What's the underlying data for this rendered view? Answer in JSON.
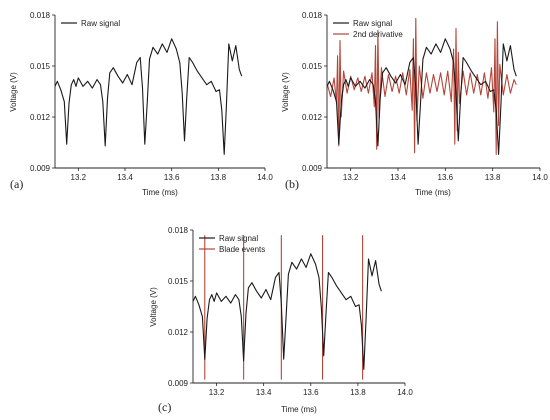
{
  "figure": {
    "background": "#ffffff"
  },
  "chart_data": [
    {
      "panel": "(a)",
      "type": "line",
      "xlabel": "Time (ms)",
      "ylabel": "Voltage (V)",
      "xlim": [
        13.1,
        14.0
      ],
      "ylim": [
        0.009,
        0.018
      ],
      "xticks": [
        13.2,
        13.4,
        13.6,
        13.8,
        14.0
      ],
      "xtick_labels": [
        "13.2",
        "13.4",
        "13.6",
        "13.8",
        "14.0"
      ],
      "yticks": [
        0.009,
        0.012,
        0.015,
        0.018
      ],
      "ytick_labels": [
        "0.009",
        "0.012",
        "0.015",
        "0.018"
      ],
      "legend": {
        "position": "top-left"
      },
      "series": [
        {
          "name": "Raw signal",
          "color": "#1a1a1a",
          "x": [
            13.1,
            13.11,
            13.125,
            13.14,
            13.15,
            13.16,
            13.17,
            13.18,
            13.19,
            13.2,
            13.22,
            13.24,
            13.26,
            13.28,
            13.295,
            13.305,
            13.315,
            13.325,
            13.335,
            13.35,
            13.37,
            13.39,
            13.41,
            13.43,
            13.45,
            13.465,
            13.475,
            13.485,
            13.495,
            13.505,
            13.52,
            13.54,
            13.56,
            13.58,
            13.6,
            13.62,
            13.635,
            13.645,
            13.655,
            13.665,
            13.675,
            13.69,
            13.71,
            13.73,
            13.75,
            13.77,
            13.79,
            13.805,
            13.815,
            13.825,
            13.835,
            13.845,
            13.86,
            13.875,
            13.89,
            13.9
          ],
          "y": [
            0.0138,
            0.0141,
            0.0136,
            0.0129,
            0.0104,
            0.0128,
            0.0139,
            0.0142,
            0.0138,
            0.0143,
            0.0138,
            0.0141,
            0.0137,
            0.0142,
            0.0139,
            0.0129,
            0.0103,
            0.0131,
            0.0146,
            0.0149,
            0.0144,
            0.014,
            0.0145,
            0.0139,
            0.0152,
            0.0155,
            0.0137,
            0.0104,
            0.0128,
            0.0154,
            0.0161,
            0.0157,
            0.0163,
            0.0158,
            0.0166,
            0.016,
            0.0152,
            0.0134,
            0.0106,
            0.0132,
            0.0155,
            0.0152,
            0.0147,
            0.0143,
            0.0139,
            0.0141,
            0.0135,
            0.0136,
            0.0124,
            0.0098,
            0.0128,
            0.0163,
            0.0153,
            0.0162,
            0.0148,
            0.0144
          ]
        }
      ]
    },
    {
      "panel": "(b)",
      "type": "line",
      "xlabel": "Time (ms)",
      "ylabel": "Voltage (V)",
      "xlim": [
        13.1,
        14.0
      ],
      "ylim": [
        0.009,
        0.018
      ],
      "xticks": [
        13.2,
        13.4,
        13.6,
        13.8,
        14.0
      ],
      "xtick_labels": [
        "13.2",
        "13.4",
        "13.6",
        "13.8",
        "14.0"
      ],
      "yticks": [
        0.009,
        0.012,
        0.015,
        0.018
      ],
      "ytick_labels": [
        "0.009",
        "0.012",
        "0.015",
        "0.018"
      ],
      "legend": {
        "position": "top-left"
      },
      "series": [
        {
          "name": "Raw signal",
          "color": "#1a1a1a",
          "x": [
            13.1,
            13.11,
            13.125,
            13.14,
            13.15,
            13.16,
            13.17,
            13.18,
            13.19,
            13.2,
            13.22,
            13.24,
            13.26,
            13.28,
            13.295,
            13.305,
            13.315,
            13.325,
            13.335,
            13.35,
            13.37,
            13.39,
            13.41,
            13.43,
            13.45,
            13.465,
            13.475,
            13.485,
            13.495,
            13.505,
            13.52,
            13.54,
            13.56,
            13.58,
            13.6,
            13.62,
            13.635,
            13.645,
            13.655,
            13.665,
            13.675,
            13.69,
            13.71,
            13.73,
            13.75,
            13.77,
            13.79,
            13.805,
            13.815,
            13.825,
            13.835,
            13.845,
            13.86,
            13.875,
            13.89,
            13.9
          ],
          "y": [
            0.0138,
            0.0141,
            0.0136,
            0.0129,
            0.0104,
            0.0128,
            0.0139,
            0.0142,
            0.0138,
            0.0143,
            0.0138,
            0.0141,
            0.0137,
            0.0142,
            0.0139,
            0.0129,
            0.0103,
            0.0131,
            0.0146,
            0.0149,
            0.0144,
            0.014,
            0.0145,
            0.0139,
            0.0152,
            0.0155,
            0.0137,
            0.0104,
            0.0128,
            0.0154,
            0.0161,
            0.0157,
            0.0163,
            0.0158,
            0.0166,
            0.016,
            0.0152,
            0.0134,
            0.0106,
            0.0132,
            0.0155,
            0.0152,
            0.0147,
            0.0143,
            0.0139,
            0.0141,
            0.0135,
            0.0136,
            0.0124,
            0.0098,
            0.0128,
            0.0163,
            0.0153,
            0.0162,
            0.0148,
            0.0144
          ]
        },
        {
          "name": "2nd derivative",
          "color": "#b5463a",
          "x": [
            13.1,
            13.115,
            13.13,
            13.14,
            13.145,
            13.15,
            13.155,
            13.16,
            13.17,
            13.185,
            13.2,
            13.215,
            13.23,
            13.245,
            13.26,
            13.275,
            13.29,
            13.3,
            13.305,
            13.31,
            13.315,
            13.32,
            13.33,
            13.345,
            13.36,
            13.375,
            13.39,
            13.405,
            13.42,
            13.435,
            13.45,
            13.46,
            13.465,
            13.47,
            13.475,
            13.48,
            13.49,
            13.505,
            13.52,
            13.535,
            13.55,
            13.565,
            13.58,
            13.595,
            13.61,
            13.625,
            13.635,
            13.64,
            13.645,
            13.65,
            13.655,
            13.66,
            13.675,
            13.69,
            13.705,
            13.72,
            13.735,
            13.75,
            13.765,
            13.78,
            13.795,
            13.805,
            13.81,
            13.815,
            13.82,
            13.825,
            13.83,
            13.845,
            13.86,
            13.875,
            13.89,
            13.9
          ],
          "y": [
            0.014,
            0.0132,
            0.0143,
            0.0128,
            0.0156,
            0.0103,
            0.0165,
            0.012,
            0.0147,
            0.0134,
            0.0144,
            0.0136,
            0.0143,
            0.0135,
            0.0144,
            0.0134,
            0.0146,
            0.0126,
            0.0162,
            0.0101,
            0.0171,
            0.0119,
            0.0149,
            0.0132,
            0.0145,
            0.0135,
            0.0144,
            0.0134,
            0.0146,
            0.0133,
            0.0148,
            0.0124,
            0.0166,
            0.0099,
            0.0178,
            0.0118,
            0.015,
            0.0131,
            0.0146,
            0.0134,
            0.0145,
            0.0135,
            0.0146,
            0.0133,
            0.0147,
            0.0129,
            0.016,
            0.0104,
            0.0172,
            0.0112,
            0.0158,
            0.0128,
            0.0147,
            0.0133,
            0.0146,
            0.0134,
            0.0145,
            0.0133,
            0.0146,
            0.0131,
            0.0149,
            0.0123,
            0.0166,
            0.0098,
            0.0176,
            0.0115,
            0.0151,
            0.0133,
            0.0145,
            0.0134,
            0.0142,
            0.0139
          ]
        }
      ]
    },
    {
      "panel": "(c)",
      "type": "line",
      "xlabel": "Time (ms)",
      "ylabel": "Voltage (V)",
      "xlim": [
        13.1,
        14.0
      ],
      "ylim": [
        0.009,
        0.018
      ],
      "xticks": [
        13.2,
        13.4,
        13.6,
        13.8,
        14.0
      ],
      "xtick_labels": [
        "13.2",
        "13.4",
        "13.6",
        "13.8",
        "14.0"
      ],
      "yticks": [
        0.009,
        0.012,
        0.015,
        0.018
      ],
      "ytick_labels": [
        "0.009",
        "0.012",
        "0.015",
        "0.018"
      ],
      "legend": {
        "position": "top-left"
      },
      "series": [
        {
          "name": "Raw signal",
          "color": "#1a1a1a",
          "x": [
            13.1,
            13.11,
            13.125,
            13.14,
            13.15,
            13.16,
            13.17,
            13.18,
            13.19,
            13.2,
            13.22,
            13.24,
            13.26,
            13.28,
            13.295,
            13.305,
            13.315,
            13.325,
            13.335,
            13.35,
            13.37,
            13.39,
            13.41,
            13.43,
            13.45,
            13.465,
            13.475,
            13.485,
            13.495,
            13.505,
            13.52,
            13.54,
            13.56,
            13.58,
            13.6,
            13.62,
            13.635,
            13.645,
            13.655,
            13.665,
            13.675,
            13.69,
            13.71,
            13.73,
            13.75,
            13.77,
            13.79,
            13.805,
            13.815,
            13.825,
            13.835,
            13.845,
            13.86,
            13.875,
            13.89,
            13.9
          ],
          "y": [
            0.0138,
            0.0141,
            0.0136,
            0.0129,
            0.0104,
            0.0128,
            0.0139,
            0.0142,
            0.0138,
            0.0143,
            0.0138,
            0.0141,
            0.0137,
            0.0142,
            0.0139,
            0.0129,
            0.0103,
            0.0131,
            0.0146,
            0.0149,
            0.0144,
            0.014,
            0.0145,
            0.0139,
            0.0152,
            0.0155,
            0.0137,
            0.0104,
            0.0128,
            0.0154,
            0.0161,
            0.0157,
            0.0163,
            0.0158,
            0.0166,
            0.016,
            0.0152,
            0.0134,
            0.0106,
            0.0132,
            0.0155,
            0.0152,
            0.0147,
            0.0143,
            0.0139,
            0.0141,
            0.0135,
            0.0136,
            0.0124,
            0.0098,
            0.0128,
            0.0163,
            0.0153,
            0.0162,
            0.0148,
            0.0144
          ]
        }
      ],
      "events": {
        "name": "Blade events",
        "color": "#b5463a",
        "x": [
          13.15,
          13.315,
          13.475,
          13.65,
          13.82
        ],
        "y_top": 0.0177,
        "y_bottom": 0.0092
      }
    }
  ]
}
